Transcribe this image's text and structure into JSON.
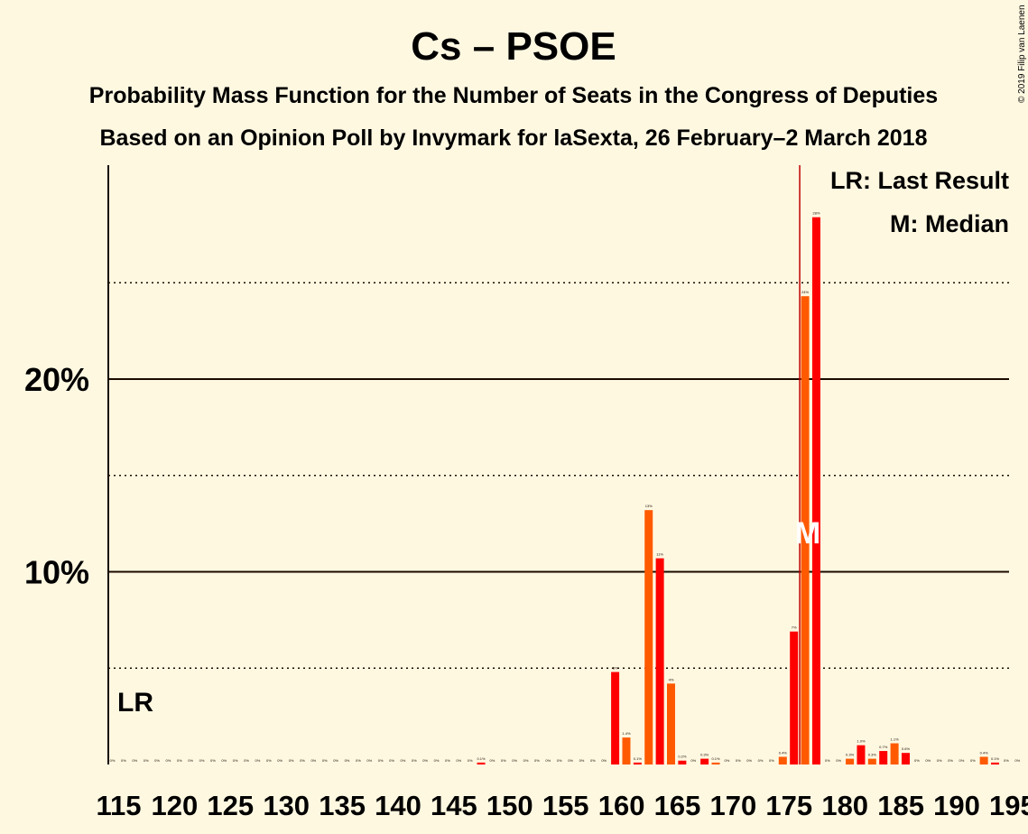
{
  "title": "Cs – PSOE",
  "subtitle": "Probability Mass Function for the Number of Seats in the Congress of Deputies",
  "subsubtitle": "Based on an Opinion Poll by Invymark for laSexta, 26 February–2 March 2018",
  "copyright": "© 2019 Filip van Laenen",
  "legend": {
    "lr": "LR: Last Result",
    "median": "M: Median"
  },
  "colors": {
    "background": "#fff8e1",
    "bar_red": "#ff0000",
    "bar_orange": "#ff5a00",
    "median_line": "#c00000",
    "text": "#1a0a00"
  },
  "chart_data": {
    "type": "bar",
    "xlim": [
      115,
      195
    ],
    "ylim": [
      0,
      31
    ],
    "yticks": [
      {
        "value": 10,
        "label": "10%"
      },
      {
        "value": 20,
        "label": "20%"
      }
    ],
    "dotted_gridlines": [
      5,
      15,
      25
    ],
    "xtick_labels": [
      "115",
      "120",
      "125",
      "130",
      "135",
      "140",
      "145",
      "150",
      "155",
      "160",
      "165",
      "170",
      "175",
      "180",
      "185",
      "190",
      "195"
    ],
    "xtick_values": [
      115,
      120,
      125,
      130,
      135,
      140,
      145,
      150,
      155,
      160,
      165,
      170,
      175,
      180,
      185,
      190,
      195
    ],
    "last_result": {
      "seat": 115,
      "label": "LR"
    },
    "median": {
      "seat": 177,
      "label": "M"
    },
    "bars": [
      {
        "seat": 115,
        "value": 0,
        "label": "0%"
      },
      {
        "seat": 116,
        "value": 0,
        "label": "0%"
      },
      {
        "seat": 117,
        "value": 0,
        "label": "0%"
      },
      {
        "seat": 118,
        "value": 0,
        "label": "0%"
      },
      {
        "seat": 119,
        "value": 0,
        "label": "0%"
      },
      {
        "seat": 120,
        "value": 0,
        "label": "0%"
      },
      {
        "seat": 121,
        "value": 0,
        "label": "0%"
      },
      {
        "seat": 122,
        "value": 0,
        "label": "0%"
      },
      {
        "seat": 123,
        "value": 0,
        "label": "0%"
      },
      {
        "seat": 124,
        "value": 0,
        "label": "0%"
      },
      {
        "seat": 125,
        "value": 0,
        "label": "0%"
      },
      {
        "seat": 126,
        "value": 0,
        "label": "0%"
      },
      {
        "seat": 127,
        "value": 0,
        "label": "0%"
      },
      {
        "seat": 128,
        "value": 0,
        "label": "0%"
      },
      {
        "seat": 129,
        "value": 0,
        "label": "0%"
      },
      {
        "seat": 130,
        "value": 0,
        "label": "0%"
      },
      {
        "seat": 131,
        "value": 0,
        "label": "0%"
      },
      {
        "seat": 132,
        "value": 0,
        "label": "0%"
      },
      {
        "seat": 133,
        "value": 0,
        "label": "0%"
      },
      {
        "seat": 134,
        "value": 0,
        "label": "0%"
      },
      {
        "seat": 135,
        "value": 0,
        "label": "0%"
      },
      {
        "seat": 136,
        "value": 0,
        "label": "0%"
      },
      {
        "seat": 137,
        "value": 0,
        "label": "0%"
      },
      {
        "seat": 138,
        "value": 0,
        "label": "0%"
      },
      {
        "seat": 139,
        "value": 0,
        "label": "0%"
      },
      {
        "seat": 140,
        "value": 0,
        "label": "0%"
      },
      {
        "seat": 141,
        "value": 0,
        "label": "0%"
      },
      {
        "seat": 142,
        "value": 0,
        "label": "0%"
      },
      {
        "seat": 143,
        "value": 0,
        "label": "0%"
      },
      {
        "seat": 144,
        "value": 0,
        "label": "0%"
      },
      {
        "seat": 145,
        "value": 0,
        "label": "0%"
      },
      {
        "seat": 146,
        "value": 0,
        "label": "0%"
      },
      {
        "seat": 147,
        "value": 0,
        "label": "0%"
      },
      {
        "seat": 148,
        "value": 0.1,
        "label": "0.1%"
      },
      {
        "seat": 149,
        "value": 0,
        "label": "0%"
      },
      {
        "seat": 150,
        "value": 0,
        "label": "0%"
      },
      {
        "seat": 151,
        "value": 0,
        "label": "0%"
      },
      {
        "seat": 152,
        "value": 0,
        "label": "0%"
      },
      {
        "seat": 153,
        "value": 0,
        "label": "0%"
      },
      {
        "seat": 154,
        "value": 0,
        "label": "0%"
      },
      {
        "seat": 155,
        "value": 0,
        "label": "0%"
      },
      {
        "seat": 156,
        "value": 0,
        "label": "0%"
      },
      {
        "seat": 157,
        "value": 0,
        "label": "0%"
      },
      {
        "seat": 158,
        "value": 0,
        "label": "0%"
      },
      {
        "seat": 159,
        "value": 0,
        "label": "0%"
      },
      {
        "seat": 160,
        "value": 4.8,
        "label": "5%"
      },
      {
        "seat": 161,
        "value": 1.4,
        "label": "1.4%"
      },
      {
        "seat": 162,
        "value": 0.1,
        "label": "0.1%"
      },
      {
        "seat": 163,
        "value": 13.2,
        "label": "13%"
      },
      {
        "seat": 164,
        "value": 10.7,
        "label": "11%"
      },
      {
        "seat": 165,
        "value": 4.2,
        "label": "4%"
      },
      {
        "seat": 166,
        "value": 0.2,
        "label": "0.2%"
      },
      {
        "seat": 167,
        "value": 0,
        "label": "0%"
      },
      {
        "seat": 168,
        "value": 0.3,
        "label": "0.3%"
      },
      {
        "seat": 169,
        "value": 0.1,
        "label": "0.1%"
      },
      {
        "seat": 170,
        "value": 0,
        "label": "0%"
      },
      {
        "seat": 171,
        "value": 0,
        "label": "0%"
      },
      {
        "seat": 172,
        "value": 0,
        "label": "0%"
      },
      {
        "seat": 173,
        "value": 0,
        "label": "0%"
      },
      {
        "seat": 174,
        "value": 0,
        "label": "0%"
      },
      {
        "seat": 175,
        "value": 0.4,
        "label": "0.4%"
      },
      {
        "seat": 176,
        "value": 6.9,
        "label": "7%"
      },
      {
        "seat": 177,
        "value": 24.3,
        "label": "24%"
      },
      {
        "seat": 178,
        "value": 28.4,
        "label": "28%"
      },
      {
        "seat": 179,
        "value": 0,
        "label": "0%"
      },
      {
        "seat": 180,
        "value": 0,
        "label": "0%"
      },
      {
        "seat": 181,
        "value": 0.3,
        "label": "0.3%"
      },
      {
        "seat": 182,
        "value": 1.0,
        "label": "1.0%"
      },
      {
        "seat": 183,
        "value": 0.3,
        "label": "0.3%"
      },
      {
        "seat": 184,
        "value": 0.7,
        "label": "0.7%"
      },
      {
        "seat": 185,
        "value": 1.1,
        "label": "1.1%"
      },
      {
        "seat": 186,
        "value": 0.6,
        "label": "0.6%"
      },
      {
        "seat": 187,
        "value": 0,
        "label": "0%"
      },
      {
        "seat": 188,
        "value": 0,
        "label": "0%"
      },
      {
        "seat": 189,
        "value": 0,
        "label": "0%"
      },
      {
        "seat": 190,
        "value": 0,
        "label": "0%"
      },
      {
        "seat": 191,
        "value": 0,
        "label": "0%"
      },
      {
        "seat": 192,
        "value": 0,
        "label": "0%"
      },
      {
        "seat": 193,
        "value": 0.4,
        "label": "0.4%"
      },
      {
        "seat": 194,
        "value": 0.1,
        "label": "0.1%"
      },
      {
        "seat": 195,
        "value": 0,
        "label": "0%"
      },
      {
        "seat": 196,
        "value": 0,
        "label": "0%"
      }
    ]
  }
}
